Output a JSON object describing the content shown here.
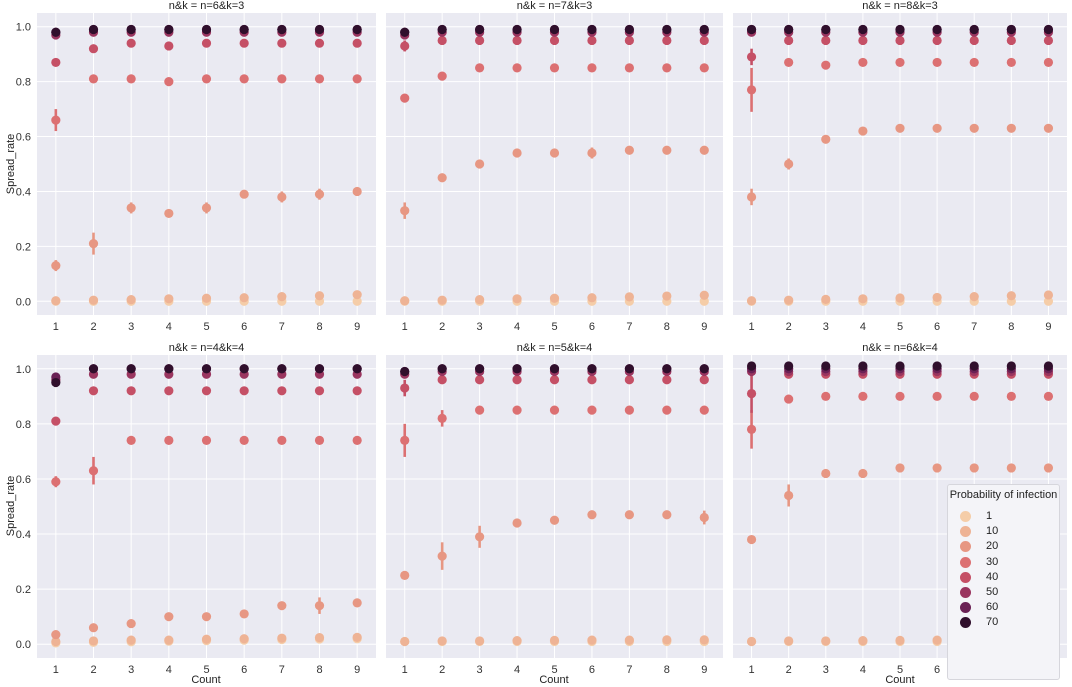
{
  "chart_data": {
    "type": "scatter",
    "x": [
      1,
      2,
      3,
      4,
      5,
      6,
      7,
      8,
      9
    ],
    "xlabel": "Count",
    "ylabel": "Spread_rate",
    "ylim": [
      0.0,
      1.0
    ],
    "yticks": [
      "0.0",
      "0.2",
      "0.4",
      "0.6",
      "0.8",
      "1.0"
    ],
    "grid": true,
    "legend": {
      "title": "Probability of infection",
      "placement": "lower-right",
      "labels": [
        "1",
        "10",
        "20",
        "30",
        "40",
        "50",
        "60",
        "70"
      ],
      "colors": [
        "#f5cda8",
        "#eeb395",
        "#e79783",
        "#dc7072",
        "#c55066",
        "#9a355f",
        "#6a2155",
        "#300f2c"
      ]
    },
    "panels": [
      {
        "title": "n&k = n=6&k=3",
        "series": [
          {
            "values": [
              0.0,
              0.0,
              0.0,
              0.0,
              0.0,
              0.0,
              0.0,
              0.0,
              0.0
            ]
          },
          {
            "values": [
              0.002,
              0.004,
              0.006,
              0.009,
              0.011,
              0.013,
              0.017,
              0.02,
              0.024
            ]
          },
          {
            "values": [
              0.13,
              0.21,
              0.34,
              0.32,
              0.34,
              0.39,
              0.38,
              0.39,
              0.4
            ],
            "err": [
              0.02,
              0.04,
              0.02,
              0.01,
              0.02,
              0.01,
              0.02,
              0.02,
              0.01
            ]
          },
          {
            "values": [
              0.66,
              0.81,
              0.81,
              0.8,
              0.81,
              0.81,
              0.81,
              0.81,
              0.81
            ],
            "err": [
              0.04,
              0.01,
              0,
              0,
              0,
              0,
              0,
              0,
              0
            ]
          },
          {
            "values": [
              0.87,
              0.92,
              0.94,
              0.93,
              0.94,
              0.94,
              0.94,
              0.94,
              0.94
            ],
            "err": [
              0,
              0.015,
              0,
              0,
              0,
              0,
              0,
              0,
              0
            ]
          },
          {
            "values": [
              0.97,
              0.98,
              0.98,
              0.98,
              0.98,
              0.98,
              0.98,
              0.98,
              0.98
            ]
          },
          {
            "values": [
              0.98,
              0.99,
              0.99,
              0.99,
              0.99,
              0.99,
              0.99,
              0.99,
              0.99
            ]
          },
          {
            "values": [
              0.98,
              0.99,
              0.99,
              0.99,
              0.99,
              0.99,
              0.99,
              0.99,
              0.99
            ],
            "err": [
              0.015,
              0,
              0,
              0,
              0,
              0,
              0,
              0,
              0
            ]
          }
        ]
      },
      {
        "title": "n&k = n=7&k=3",
        "series": [
          {
            "values": [
              0.0,
              0.0,
              0.0,
              0.0,
              0.0,
              0.0,
              0.0,
              0.0,
              0.0
            ]
          },
          {
            "values": [
              0.002,
              0.004,
              0.006,
              0.009,
              0.011,
              0.013,
              0.016,
              0.019,
              0.022
            ]
          },
          {
            "values": [
              0.33,
              0.45,
              0.5,
              0.54,
              0.54,
              0.54,
              0.55,
              0.55,
              0.55
            ],
            "err": [
              0.03,
              0,
              0,
              0,
              0,
              0.02,
              0,
              0,
              0.015
            ]
          },
          {
            "values": [
              0.74,
              0.82,
              0.85,
              0.85,
              0.85,
              0.85,
              0.85,
              0.85,
              0.85
            ]
          },
          {
            "values": [
              0.93,
              0.95,
              0.95,
              0.95,
              0.95,
              0.95,
              0.95,
              0.95,
              0.95
            ],
            "err": [
              0.02,
              0,
              0,
              0,
              0,
              0,
              0,
              0,
              0
            ]
          },
          {
            "values": [
              0.97,
              0.98,
              0.98,
              0.98,
              0.98,
              0.98,
              0.98,
              0.98,
              0.98
            ]
          },
          {
            "values": [
              0.98,
              0.99,
              0.99,
              0.99,
              0.99,
              0.99,
              0.99,
              0.99,
              0.99
            ]
          },
          {
            "values": [
              0.98,
              0.99,
              0.99,
              0.99,
              0.99,
              0.99,
              0.99,
              0.99,
              0.99
            ],
            "err": [
              0.015,
              0,
              0,
              0,
              0,
              0,
              0,
              0,
              0
            ]
          }
        ]
      },
      {
        "title": "n&k = n=8&k=3",
        "series": [
          {
            "values": [
              0.0,
              0.0,
              0.0,
              0.0,
              0.0,
              0.0,
              0.0,
              0.0,
              0.0
            ]
          },
          {
            "values": [
              0.002,
              0.004,
              0.007,
              0.009,
              0.012,
              0.014,
              0.017,
              0.02,
              0.023
            ]
          },
          {
            "values": [
              0.38,
              0.5,
              0.59,
              0.62,
              0.63,
              0.63,
              0.63,
              0.63,
              0.63
            ],
            "err": [
              0.03,
              0.02,
              0,
              0,
              0,
              0,
              0,
              0,
              0
            ]
          },
          {
            "values": [
              0.77,
              0.87,
              0.86,
              0.87,
              0.87,
              0.87,
              0.87,
              0.87,
              0.87
            ],
            "err": [
              0.08,
              0,
              0.015,
              0,
              0,
              0,
              0,
              0,
              0
            ]
          },
          {
            "values": [
              0.89,
              0.95,
              0.95,
              0.95,
              0.95,
              0.95,
              0.95,
              0.95,
              0.95
            ],
            "err": [
              0.03,
              0,
              0,
              0,
              0,
              0,
              0,
              0,
              0
            ]
          },
          {
            "values": [
              0.98,
              0.98,
              0.98,
              0.98,
              0.98,
              0.98,
              0.98,
              0.98,
              0.98
            ]
          },
          {
            "values": [
              0.99,
              0.99,
              0.99,
              0.99,
              0.99,
              0.99,
              0.99,
              0.99,
              0.99
            ]
          },
          {
            "values": [
              0.99,
              0.99,
              0.99,
              0.99,
              0.99,
              0.99,
              0.99,
              0.99,
              0.99
            ]
          }
        ]
      },
      {
        "title": "n&k = n=4&k=4",
        "series": [
          {
            "values": [
              0.005,
              0.007,
              0.009,
              0.011,
              0.013,
              0.015,
              0.017,
              0.019,
              0.02
            ]
          },
          {
            "values": [
              0.01,
              0.012,
              0.015,
              0.015,
              0.018,
              0.02,
              0.022,
              0.024,
              0.025
            ]
          },
          {
            "values": [
              0.035,
              0.06,
              0.075,
              0.1,
              0.1,
              0.11,
              0.14,
              0.14,
              0.15
            ],
            "err": [
              0,
              0,
              0,
              0,
              0,
              0,
              0,
              0.03,
              0
            ]
          },
          {
            "values": [
              0.59,
              0.63,
              0.74,
              0.74,
              0.74,
              0.74,
              0.74,
              0.74,
              0.74
            ],
            "err": [
              0.02,
              0.05,
              0,
              0,
              0,
              0,
              0,
              0,
              0
            ]
          },
          {
            "values": [
              0.81,
              0.92,
              0.92,
              0.92,
              0.92,
              0.92,
              0.92,
              0.92,
              0.92
            ]
          },
          {
            "values": [
              0.96,
              0.98,
              0.98,
              0.98,
              0.98,
              0.98,
              0.98,
              0.98,
              0.98
            ]
          },
          {
            "values": [
              0.97,
              1.0,
              1.0,
              1.0,
              1.0,
              1.0,
              1.0,
              1.0,
              1.0
            ]
          },
          {
            "values": [
              0.95,
              1.0,
              1.0,
              1.0,
              1.0,
              1.0,
              1.0,
              1.0,
              1.0
            ],
            "err": [
              0.015,
              0,
              0,
              0,
              0,
              0,
              0,
              0,
              0
            ]
          }
        ]
      },
      {
        "title": "n&k = n=5&k=4",
        "series": [
          {
            "values": [
              0.01,
              0.01,
              0.01,
              0.01,
              0.01,
              0.01,
              0.01,
              0.01,
              0.01
            ]
          },
          {
            "values": [
              0.01,
              0.012,
              0.012,
              0.013,
              0.014,
              0.015,
              0.015,
              0.016,
              0.016
            ]
          },
          {
            "values": [
              0.25,
              0.32,
              0.39,
              0.44,
              0.45,
              0.47,
              0.47,
              0.47,
              0.46
            ],
            "err": [
              0,
              0.05,
              0.04,
              0,
              0.015,
              0,
              0,
              0,
              0.025
            ]
          },
          {
            "values": [
              0.74,
              0.82,
              0.85,
              0.85,
              0.85,
              0.85,
              0.85,
              0.85,
              0.85
            ],
            "err": [
              0.06,
              0.03,
              0,
              0,
              0,
              0,
              0,
              0,
              0
            ]
          },
          {
            "values": [
              0.93,
              0.96,
              0.96,
              0.96,
              0.96,
              0.96,
              0.96,
              0.96,
              0.96
            ],
            "err": [
              0.03,
              0,
              0,
              0,
              0,
              0,
              0,
              0,
              0
            ]
          },
          {
            "values": [
              0.98,
              0.99,
              0.99,
              0.99,
              0.99,
              0.99,
              0.99,
              0.99,
              0.99
            ]
          },
          {
            "values": [
              0.99,
              1.0,
              1.0,
              1.0,
              1.0,
              1.0,
              1.0,
              1.0,
              1.0
            ]
          },
          {
            "values": [
              0.99,
              1.0,
              1.0,
              1.0,
              1.0,
              1.0,
              1.0,
              1.0,
              1.0
            ]
          }
        ]
      },
      {
        "title": "n&k = n=6&k=4",
        "series": [
          {
            "values": [
              0.01,
              0.01,
              0.01,
              0.01,
              0.01,
              0.01,
              0.01,
              0.01,
              0.01
            ]
          },
          {
            "values": [
              0.01,
              0.012,
              0.012,
              0.013,
              0.014,
              0.015,
              0.015,
              0.016,
              0.016
            ]
          },
          {
            "values": [
              0.38,
              0.54,
              0.62,
              0.62,
              0.64,
              0.64,
              0.64,
              0.64,
              0.64
            ],
            "err": [
              0,
              0.04,
              0,
              0,
              0,
              0,
              0,
              0,
              0
            ]
          },
          {
            "values": [
              0.78,
              0.89,
              0.9,
              0.9,
              0.9,
              0.9,
              0.9,
              0.9,
              0.9
            ],
            "err": [
              0.07,
              0.015,
              0,
              0,
              0,
              0,
              0,
              0,
              0
            ]
          },
          {
            "values": [
              0.91,
              0.98,
              0.98,
              0.98,
              0.98,
              0.98,
              0.98,
              0.98,
              0.98
            ],
            "err": [
              0.07,
              0,
              0,
              0,
              0,
              0,
              0,
              0,
              0
            ]
          },
          {
            "values": [
              0.99,
              0.99,
              0.99,
              0.99,
              0.99,
              0.99,
              0.99,
              0.99,
              0.99
            ]
          },
          {
            "values": [
              1.0,
              1.0,
              1.0,
              1.0,
              1.0,
              1.0,
              1.0,
              1.0,
              1.0
            ]
          },
          {
            "values": [
              1.01,
              1.01,
              1.01,
              1.01,
              1.01,
              1.01,
              1.01,
              1.01,
              1.01
            ]
          }
        ]
      }
    ]
  }
}
